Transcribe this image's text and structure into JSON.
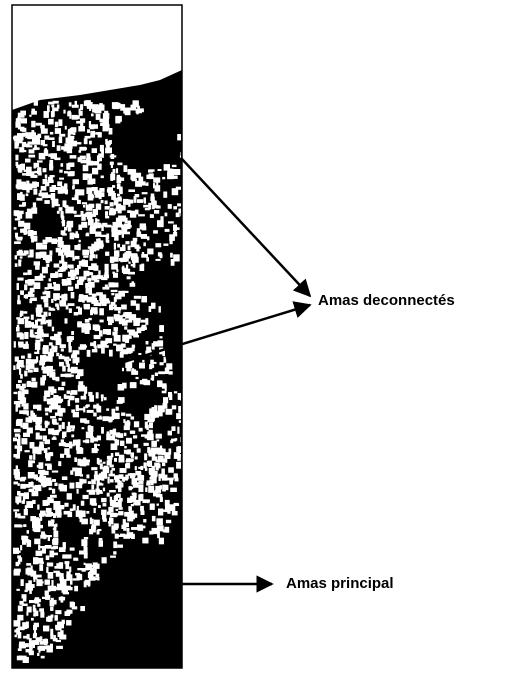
{
  "labels": {
    "disconnected": "Amas deconnectés",
    "main": "Amas principal"
  }
}
